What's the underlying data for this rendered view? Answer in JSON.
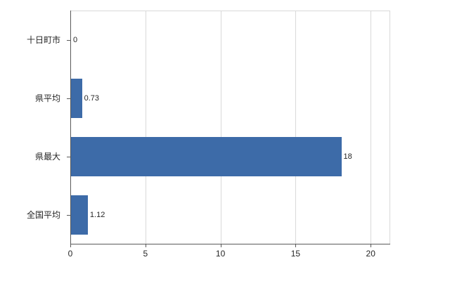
{
  "chart_data": {
    "type": "bar",
    "orientation": "horizontal",
    "title": "",
    "xlabel": "",
    "ylabel": "",
    "categories": [
      "十日町市",
      "県平均",
      "県最大",
      "全国平均"
    ],
    "values": [
      0,
      0.73,
      18,
      1.12
    ],
    "value_labels": [
      "0",
      "0.73",
      "18",
      "1.12"
    ],
    "xticks": [
      0,
      5,
      10,
      15,
      20
    ],
    "xlim": [
      0,
      21.3
    ],
    "grid": true,
    "legend": false,
    "bar_color": "#3d6ba8",
    "gridline_color": "#d9d9d9",
    "axis_color": "#595959",
    "text_color": "#262626",
    "background_color": "#ffffff"
  }
}
